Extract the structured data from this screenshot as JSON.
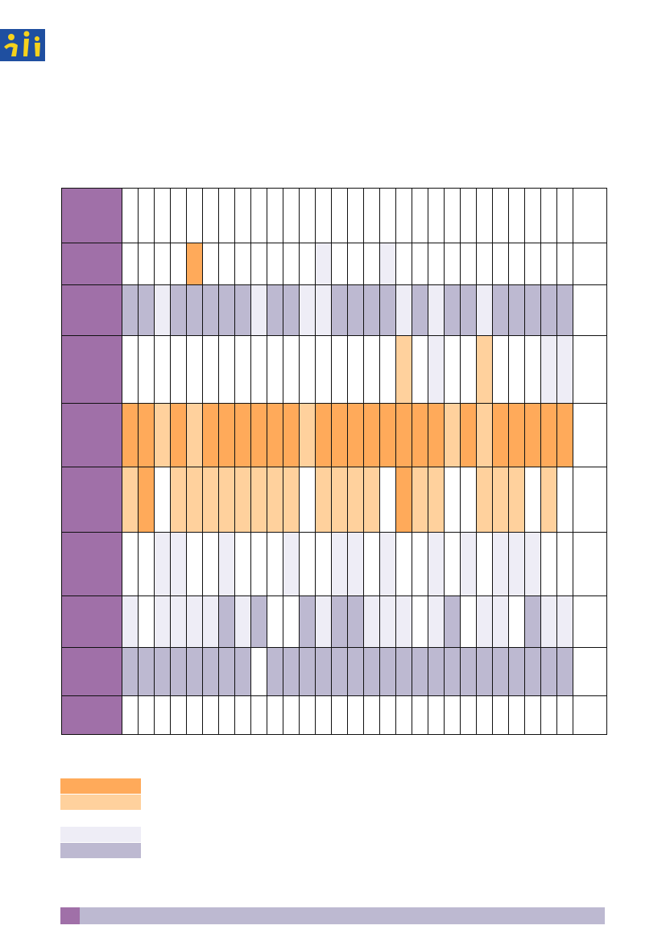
{
  "document": {
    "logo": {
      "icon": "eu-figures-logo",
      "background_color": "#1f4fa0",
      "figure_color": "#f6d21c"
    },
    "grid": {
      "header_color": "#a070a8",
      "color_codes": {
        "D": "#ffaa5a",
        "L": "#ffd19d",
        "W": "#ffffff",
        "P": "#eeedf6",
        "G": "#bdb9d1"
      },
      "rows": [
        "WWWWWWWWWWWWWWWWWWWWWWWWWWWWW",
        "WWWWDWWWWWWWPWWWPWWWWWWWWWWWW",
        "GGPGGGGGPGGPPGGGGPGPGGPGGGGGW",
        "WWWWWWWWWWWWWWWWWLWPWWLWWWPPW",
        "DDLDLDDDDDDLDDDDDDDDLDLDDDDDW",
        "LDWLLLLLLLLWLLLLWDLLWWLLLWLWW",
        "WWPPWWPWWWPWWPPWPWWPWPWPPPWWW",
        "PWPPPPGPGWWGPGGPPPWPGWPPWGPPW",
        "GGGGGGGGWGGGGGGGGGGGGGGGGGGGW",
        "WWWWWWWWWWWWWWWWWWWWWWWWWWWWW"
      ]
    },
    "legend": {
      "items": [
        {
          "color": "#ffaa5a"
        },
        {
          "color": "#ffd19d"
        },
        {
          "color": "#eeedf6"
        },
        {
          "color": "#bdb9d1"
        }
      ]
    },
    "footer": {
      "accent_color": "#a070a8",
      "bar_color": "#bdb9d1"
    }
  }
}
